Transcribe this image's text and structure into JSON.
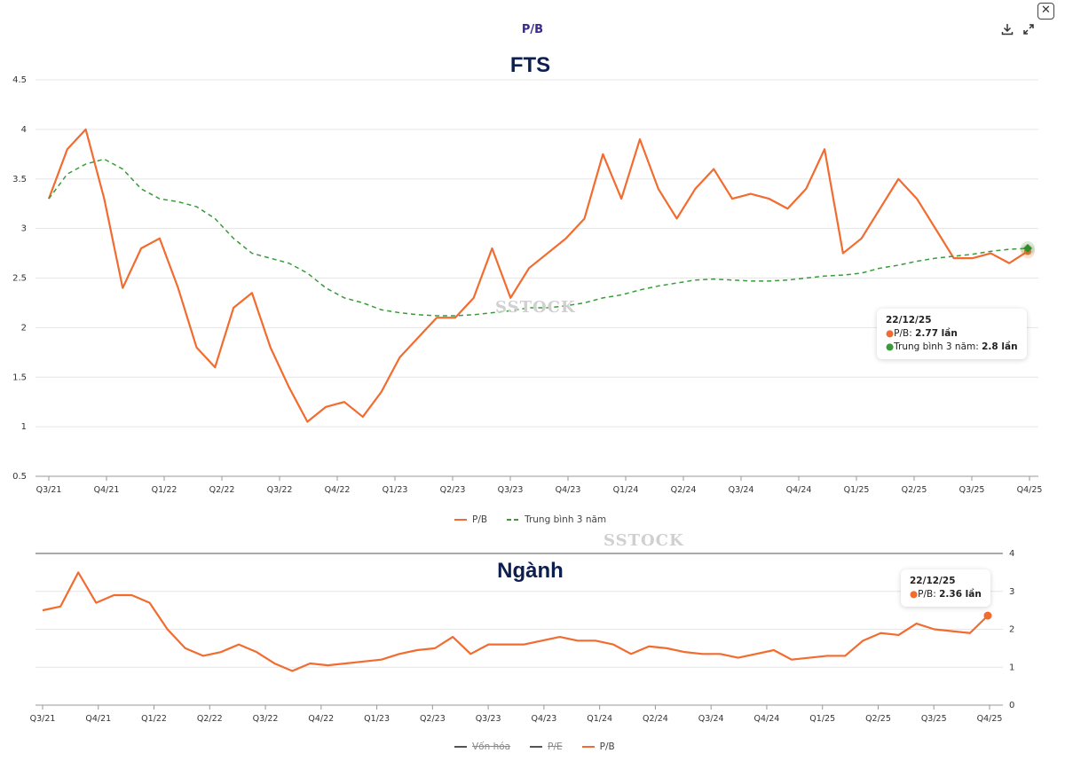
{
  "header": {
    "title": "P/B",
    "close_icon": "close-icon",
    "download_icon": "download-icon",
    "expand_icon": "expand-icon"
  },
  "watermark": "SSTOCK",
  "chart_data": [
    {
      "type": "line",
      "title": "FTS",
      "x_tick_labels": [
        "Q3/21",
        "Q4/21",
        "Q1/22",
        "Q2/22",
        "Q3/22",
        "Q4/22",
        "Q1/23",
        "Q2/23",
        "Q3/23",
        "Q4/23",
        "Q1/24",
        "Q2/24",
        "Q3/24",
        "Q4/24",
        "Q1/25",
        "Q2/25",
        "Q3/25",
        "Q4/25"
      ],
      "y_ticks": [
        "0.5",
        "1",
        "1.5",
        "2",
        "2.5",
        "3",
        "3.5",
        "4",
        "4.5"
      ],
      "ylim": [
        0.5,
        4.5
      ],
      "grid": true,
      "legend_position": "bottom",
      "dates": [
        "2021-07",
        "2021-08",
        "2021-09",
        "2021-10",
        "2021-11",
        "2021-12",
        "2022-01",
        "2022-02",
        "2022-03",
        "2022-04",
        "2022-05",
        "2022-06",
        "2022-07",
        "2022-08",
        "2022-09",
        "2022-10",
        "2022-11",
        "2022-12",
        "2023-01",
        "2023-02",
        "2023-03",
        "2023-04",
        "2023-05",
        "2023-06",
        "2023-07",
        "2023-08",
        "2023-09",
        "2023-10",
        "2023-11",
        "2023-12",
        "2024-01",
        "2024-02",
        "2024-03",
        "2024-04",
        "2024-05",
        "2024-06",
        "2024-07",
        "2024-08",
        "2024-09",
        "2024-10",
        "2024-11",
        "2024-12",
        "2025-01",
        "2025-02",
        "2025-03",
        "2025-04",
        "2025-05",
        "2025-06",
        "2025-07",
        "2025-08",
        "2025-09",
        "2025-10",
        "2025-11",
        "2025-12-22"
      ],
      "series": [
        {
          "name": "P/B",
          "color": "#f26b2f",
          "dash": false,
          "values": [
            3.3,
            3.8,
            4.0,
            3.3,
            2.4,
            2.8,
            2.9,
            2.4,
            1.8,
            1.6,
            2.2,
            2.35,
            1.8,
            1.4,
            1.05,
            1.2,
            1.25,
            1.1,
            1.35,
            1.7,
            1.9,
            2.1,
            2.1,
            2.3,
            2.8,
            2.3,
            2.6,
            2.75,
            2.9,
            3.1,
            3.75,
            3.3,
            3.9,
            3.4,
            3.1,
            3.4,
            3.6,
            3.3,
            3.35,
            3.3,
            3.2,
            3.4,
            3.8,
            2.75,
            2.9,
            3.2,
            3.5,
            3.3,
            3.0,
            2.7,
            2.7,
            2.75,
            2.65,
            2.77
          ]
        },
        {
          "name": "Trung bình 3 năm",
          "color": "#3a9a3a",
          "dash": true,
          "values": [
            3.3,
            3.55,
            3.65,
            3.7,
            3.6,
            3.4,
            3.3,
            3.27,
            3.22,
            3.1,
            2.9,
            2.75,
            2.7,
            2.65,
            2.55,
            2.4,
            2.3,
            2.25,
            2.18,
            2.15,
            2.13,
            2.12,
            2.12,
            2.13,
            2.15,
            2.17,
            2.2,
            2.2,
            2.22,
            2.25,
            2.3,
            2.33,
            2.38,
            2.42,
            2.45,
            2.48,
            2.49,
            2.48,
            2.47,
            2.47,
            2.48,
            2.5,
            2.52,
            2.53,
            2.55,
            2.6,
            2.63,
            2.67,
            2.7,
            2.72,
            2.74,
            2.77,
            2.79,
            2.8
          ]
        }
      ],
      "tooltip": {
        "date": "22/12/25",
        "pb_label": "P/B: ",
        "pb_value": "2.77 lần",
        "avg_label": "Trung bình 3 năm: ",
        "avg_value": "2.8 lần"
      },
      "legend": [
        "P/B",
        "Trung bình 3 năm"
      ]
    },
    {
      "type": "line",
      "title": "Ngành",
      "x_tick_labels": [
        "Q3/21",
        "Q4/21",
        "Q1/22",
        "Q2/22",
        "Q3/22",
        "Q4/22",
        "Q1/23",
        "Q2/23",
        "Q3/23",
        "Q4/23",
        "Q1/24",
        "Q2/24",
        "Q3/24",
        "Q4/24",
        "Q1/25",
        "Q2/25",
        "Q3/25",
        "Q4/25"
      ],
      "y_ticks": [
        "0",
        "1",
        "2",
        "3",
        "4"
      ],
      "ylim": [
        0,
        4
      ],
      "grid": true,
      "y_axis_position": "right",
      "legend_position": "bottom",
      "series": [
        {
          "name": "P/B",
          "color": "#f26b2f",
          "values": [
            2.5,
            2.6,
            3.5,
            2.7,
            2.9,
            2.9,
            2.7,
            2.0,
            1.5,
            1.3,
            1.4,
            1.6,
            1.4,
            1.1,
            0.9,
            1.1,
            1.05,
            1.1,
            1.15,
            1.2,
            1.35,
            1.45,
            1.5,
            1.8,
            1.35,
            1.6,
            1.6,
            1.6,
            1.7,
            1.8,
            1.7,
            1.7,
            1.6,
            1.35,
            1.55,
            1.5,
            1.4,
            1.35,
            1.35,
            1.25,
            1.35,
            1.45,
            1.2,
            1.25,
            1.3,
            1.3,
            1.7,
            1.9,
            1.85,
            2.15,
            2.0,
            1.95,
            1.9,
            2.36
          ]
        }
      ],
      "tooltip": {
        "date": "22/12/25",
        "pb_label": "P/B: ",
        "pb_value": "2.36 lần"
      },
      "legend": [
        {
          "label": "Vốn hóa",
          "disabled": true
        },
        {
          "label": "P/E",
          "disabled": true
        },
        {
          "label": "P/B",
          "disabled": false
        }
      ]
    }
  ]
}
